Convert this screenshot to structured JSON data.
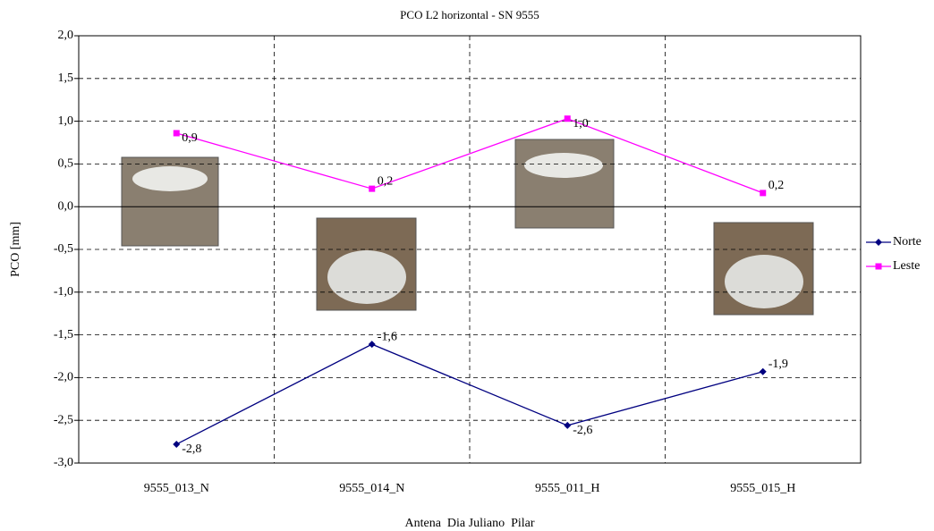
{
  "chart_data": {
    "type": "line",
    "title": "PCO L2 horizontal - SN 9555",
    "y_label": "PCO [mm]",
    "x_label": "Antena  Dia Juliano  Pilar",
    "categories": [
      "9555_013_N",
      "9555_014_N",
      "9555_011_H",
      "9555_015_H"
    ],
    "series": [
      {
        "name": "Norte",
        "color": "#000080",
        "marker": "diamond",
        "values": [
          -2.78,
          -1.61,
          -2.56,
          -1.93
        ],
        "value_labels": [
          "-2,8",
          "-1,6",
          "-2,6",
          "-1,9"
        ]
      },
      {
        "name": "Leste",
        "color": "#ff00ff",
        "marker": "square",
        "values": [
          0.86,
          0.21,
          1.03,
          0.16
        ],
        "value_labels": [
          "0,9",
          "0,2",
          "1,0",
          "0,2"
        ]
      }
    ],
    "ylim": [
      -3.0,
      2.0
    ],
    "yticks": [
      {
        "value": 2.0,
        "label": "2,0"
      },
      {
        "value": 1.5,
        "label": "1,5"
      },
      {
        "value": 1.0,
        "label": "1,0"
      },
      {
        "value": 0.5,
        "label": "0,5"
      },
      {
        "value": 0,
        "label": "0,0"
      },
      {
        "value": -0.5,
        "label": "-0,5"
      },
      {
        "value": -1.0,
        "label": "-1,0"
      },
      {
        "value": -1.5,
        "label": "-1,5"
      },
      {
        "value": -2.0,
        "label": "-2,0"
      },
      {
        "value": -2.5,
        "label": "-2,5"
      },
      {
        "value": -3.0,
        "label": "-3,0"
      }
    ],
    "grid": true,
    "legend": "right"
  }
}
